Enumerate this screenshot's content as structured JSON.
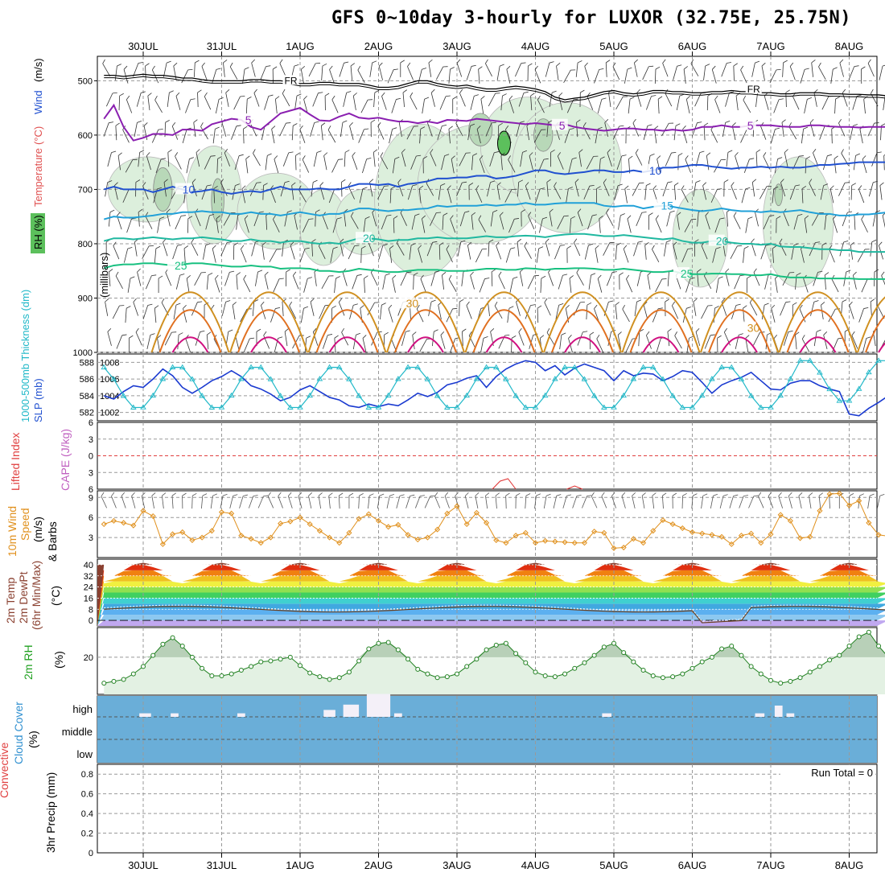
{
  "title": "GFS 0~10day 3-hourly for LUXOR (32.75E, 25.75N)",
  "chart_data": {
    "type": "meteogram",
    "x_dates": [
      "30JUL",
      "31JUL",
      "1AUG",
      "2AUG",
      "3AUG",
      "4AUG",
      "5AUG",
      "6AUG",
      "7AUG",
      "8AUG"
    ],
    "panels": {
      "upper_air": {
        "ylabel_parts": [
          "RH (%)",
          "Temperature",
          "(°C)",
          "Wind",
          "(m/s)"
        ],
        "yunit": "(millibars)",
        "yticks": [
          500,
          600,
          700,
          800,
          900,
          1000
        ],
        "ylim": [
          1000,
          455
        ],
        "freezing_level_label": "FR",
        "isotherms": [
          {
            "temp": 5,
            "color": "#8a1fb0",
            "pressures": [
              570,
              545,
              585,
              610,
              605,
              598,
              598,
              600,
              590,
              590,
              592,
              580,
              575,
              570,
              572,
              585,
              590,
              575,
              560,
              555,
              550,
              562,
              573,
              574,
              566,
              560,
              568,
              570,
              568,
              572,
              575,
              575,
              578,
              575,
              578,
              572,
              573,
              574,
              570,
              572,
              574,
              576,
              578,
              580,
              578,
              580,
              582,
              580,
              585,
              588,
              590,
              592,
              590,
              588,
              588,
              590,
              590,
              592,
              590,
              592,
              590,
              585,
              585,
              582,
              585,
              585,
              582,
              582,
              582,
              584,
              585,
              585,
              582,
              582,
              584,
              585,
              585,
              586,
              585,
              585,
              585
            ]
          },
          {
            "temp": 10,
            "color": "#2050d0",
            "pressures": [
              700,
              695,
              700,
              700,
              700,
              705,
              700,
              695,
              700,
              705,
              703,
              700,
              705,
              708,
              705,
              703,
              705,
              700,
              695,
              700,
              700,
              700,
              698,
              700,
              700,
              695,
              690,
              690,
              692,
              690,
              695,
              690,
              688,
              685,
              680,
              680,
              678,
              678,
              675,
              675,
              680,
              678,
              675,
              670,
              665,
              665,
              670,
              672,
              670,
              668,
              665,
              665,
              668,
              668,
              665,
              668,
              665,
              660,
              660,
              658,
              655,
              655,
              658,
              660,
              662,
              660,
              660,
              658,
              660,
              658,
              660,
              660,
              658,
              655,
              655,
              653,
              652,
              650,
              650,
              650,
              650
            ]
          },
          {
            "temp": 15,
            "color": "#20a0d8",
            "pressures": [
              755,
              750,
              752,
              752,
              750,
              748,
              745,
              745,
              742,
              742,
              740,
              742,
              742,
              745,
              745,
              742,
              745,
              745,
              748,
              745,
              742,
              745,
              748,
              745,
              745,
              740,
              735,
              735,
              738,
              740,
              738,
              738,
              736,
              735,
              730,
              732,
              730,
              730,
              730,
              728,
              730,
              728,
              728,
              725,
              728,
              728,
              726,
              725,
              725,
              725,
              725,
              730,
              732,
              730,
              730,
              735,
              732,
              730,
              732,
              735,
              738,
              740,
              738,
              735,
              738,
              740,
              740,
              742,
              740,
              742,
              740,
              738,
              742,
              745,
              745,
              748,
              748,
              746,
              746,
              744,
              742
            ]
          },
          {
            "temp": 20,
            "color": "#20b8a0",
            "pressures": [
              795,
              790,
              790,
              792,
              790,
              788,
              790,
              792,
              790,
              790,
              788,
              790,
              792,
              795,
              795,
              792,
              795,
              795,
              798,
              795,
              795,
              798,
              800,
              798,
              800,
              795,
              790,
              790,
              792,
              795,
              793,
              793,
              790,
              790,
              788,
              790,
              790,
              790,
              788,
              786,
              788,
              788,
              786,
              785,
              786,
              788,
              785,
              783,
              782,
              782,
              784,
              786,
              786,
              784,
              786,
              788,
              790,
              792,
              790,
              795,
              798,
              798,
              795,
              795,
              798,
              800,
              800,
              802,
              800,
              805,
              806,
              806,
              808,
              810,
              810,
              812,
              812,
              815,
              815,
              815,
              815
            ]
          },
          {
            "temp": 25,
            "color": "#18c080",
            "pressures": [
              845,
              840,
              838,
              838,
              836,
              836,
              838,
              840,
              838,
              836,
              836,
              838,
              840,
              842,
              842,
              840,
              842,
              842,
              846,
              845,
              845,
              846,
              850,
              850,
              852,
              850,
              846,
              848,
              850,
              852,
              852,
              850,
              848,
              848,
              848,
              850,
              850,
              850,
              848,
              846,
              846,
              848,
              848,
              845,
              846,
              848,
              846,
              846,
              845,
              845,
              846,
              848,
              848,
              846,
              848,
              850,
              852,
              852,
              850,
              855,
              856,
              856,
              855,
              855,
              856,
              856,
              858,
              858,
              856,
              860,
              862,
              862,
              862,
              864,
              864,
              864,
              864,
              865,
              865,
              865,
              865
            ]
          }
        ],
        "isotherm_labels": [
          {
            "text": "5",
            "temp": 5,
            "x_day": 1.3
          },
          {
            "text": "5",
            "temp": 5,
            "x_day": 5.3
          },
          {
            "text": "5",
            "temp": 5,
            "x_day": 7.7
          },
          {
            "text": "10",
            "temp": 10,
            "x_day": 0.5
          },
          {
            "text": "10",
            "temp": 10,
            "x_day": 6.45
          },
          {
            "text": "15",
            "temp": 15,
            "x_day": 6.6
          },
          {
            "text": "20",
            "temp": 20,
            "x_day": 2.8
          },
          {
            "text": "20",
            "temp": 20,
            "x_day": 7.3
          },
          {
            "text": "25",
            "temp": 25,
            "x_day": 0.4
          },
          {
            "text": "25",
            "temp": 25,
            "x_day": 6.85
          },
          {
            "text": "30",
            "temp": 30,
            "x_day": 3.35
          },
          {
            "text": "30",
            "temp": 30,
            "x_day": 7.7
          }
        ]
      },
      "slp_thickness": {
        "ylabel_left": "1000-500mb Thickness (dm)",
        "ylabel_right": "SLP (mb)",
        "thickness_ticks": [
          582,
          584,
          586,
          588
        ],
        "slp_ticks": [
          1002,
          1004,
          1006,
          1008
        ],
        "slp": [
          1004.0,
          1003.6,
          1004.5,
          1005.2,
          1005.0,
          1006.0,
          1007.2,
          1006.4,
          1005.0,
          1004.3,
          1005.0,
          1005.8,
          1006.3,
          1007.0,
          1006.3,
          1005.2,
          1004.8,
          1004.2,
          1003.4,
          1003.8,
          1004.7,
          1005.2,
          1004.5,
          1003.8,
          1003.5,
          1002.8,
          1002.6,
          1003.0,
          1002.7,
          1003.0,
          1002.8,
          1003.5,
          1004.3,
          1003.9,
          1004.4,
          1005.3,
          1005.6,
          1006.1,
          1006.4,
          1005.0,
          1006.3,
          1007.2,
          1007.8,
          1008.2,
          1008.0,
          1007.0,
          1007.6,
          1006.5,
          1007.3,
          1007.8,
          1007.4,
          1007.0,
          1005.8,
          1007.0,
          1006.4,
          1006.7,
          1006.6,
          1005.8,
          1006.3,
          1007.0,
          1006.8,
          1005.6,
          1004.3,
          1005.3,
          1005.8,
          1006.2,
          1006.8,
          1005.8,
          1004.8,
          1004.7,
          1005.5,
          1005.8,
          1005.8,
          1005.2,
          1004.8,
          1004.5,
          1001.8,
          1001.6,
          1002.5,
          1003.2,
          1004.0
        ]
      },
      "stability": {
        "ylabel_left": "Lifted Index",
        "ylabel_right": "CAPE (J/kg)",
        "li_ticks": [
          -6,
          -3,
          0,
          3,
          6
        ],
        "li_zero": 0
      },
      "wind10m": {
        "ylabel": "10m Wind Speed (m/s) & Barbs",
        "yticks": [
          3,
          6,
          9
        ],
        "ylim": [
          0,
          10
        ],
        "speed": [
          5.0,
          5.5,
          5.2,
          4.8,
          7.0,
          6.2,
          2.0,
          3.5,
          3.8,
          2.6,
          3.0,
          4.0,
          6.8,
          6.6,
          3.3,
          2.8,
          2.2,
          3.0,
          5.1,
          5.4,
          6.0,
          5.0,
          4.0,
          3.0,
          2.2,
          3.7,
          5.8,
          6.5,
          5.5,
          4.6,
          4.9,
          3.4,
          2.7,
          3.0,
          4.2,
          6.6,
          7.7,
          5.0,
          6.7,
          5.2,
          2.6,
          2.2,
          3.3,
          3.7,
          2.2,
          2.5,
          2.4,
          2.3,
          2.2,
          2.2,
          3.9,
          3.7,
          1.4,
          1.5,
          2.8,
          2.2,
          4.0,
          5.6,
          5.0,
          4.4,
          3.8,
          3.6,
          3.4,
          3.1,
          2.0,
          3.3,
          3.6,
          2.2,
          3.5,
          6.4,
          5.5,
          2.9,
          3.1,
          7.0,
          9.5,
          9.6,
          7.8,
          8.5,
          5.2,
          3.4,
          3.2
        ]
      },
      "temp2m": {
        "ylabel": "2m Temp / 2m DewPt / (6hr Min/Max) (°C)",
        "yticks": [
          0,
          8,
          16,
          24,
          32,
          40
        ],
        "ylim": [
          -4,
          44
        ],
        "t2m_range": [
          26,
          42
        ]
      },
      "rh2m": {
        "ylabel": "2m RH (%)",
        "yticks": [
          20
        ],
        "ylim": [
          0,
          36
        ],
        "rh": [
          6.0,
          7.0,
          8.0,
          11.0,
          15.0,
          21.0,
          27.0,
          30.5,
          26.0,
          20.0,
          14.0,
          10.0,
          10.0,
          11.0,
          13.0,
          15.0,
          17.5,
          18.0,
          19.0,
          20.0,
          15.5,
          11.5,
          9.5,
          8.0,
          9.0,
          12.0,
          18.0,
          24.5,
          27.5,
          28.0,
          24.0,
          19.0,
          13.5,
          11.0,
          9.0,
          9.5,
          11.0,
          15.0,
          19.0,
          24.0,
          26.5,
          27.5,
          22.0,
          17.0,
          12.0,
          10.0,
          9.5,
          11.0,
          14.0,
          17.0,
          21.0,
          25.5,
          27.5,
          22.5,
          17.5,
          13.0,
          10.0,
          9.0,
          9.5,
          11.0,
          14.0,
          17.5,
          20.0,
          24.5,
          26.0,
          21.0,
          15.0,
          11.0,
          7.5,
          6.0,
          7.0,
          9.0,
          12.0,
          15.0,
          18.5,
          21.0,
          26.0,
          31.0,
          33.5,
          26.0,
          20.0
        ]
      },
      "cloud": {
        "ylabel": "Cloud Cover (%)",
        "levels": [
          "high",
          "middle",
          "low"
        ],
        "bars": [
          {
            "day": -0.05,
            "w": 0.15,
            "level": "high",
            "h": 8
          },
          {
            "day": 0.35,
            "w": 0.1,
            "level": "high",
            "h": 8
          },
          {
            "day": 1.2,
            "w": 0.1,
            "level": "high",
            "h": 8
          },
          {
            "day": 2.3,
            "w": 0.15,
            "level": "high",
            "h": 22
          },
          {
            "day": 2.55,
            "w": 0.2,
            "level": "high",
            "h": 44
          },
          {
            "day": 2.85,
            "w": 0.3,
            "level": "high",
            "h": 88
          },
          {
            "day": 3.2,
            "w": 0.1,
            "level": "high",
            "h": 8
          },
          {
            "day": 5.85,
            "w": 0.12,
            "level": "high",
            "h": 8
          },
          {
            "day": 7.8,
            "w": 0.12,
            "level": "high",
            "h": 8
          },
          {
            "day": 8.05,
            "w": 0.1,
            "level": "high",
            "h": 40
          },
          {
            "day": 8.2,
            "w": 0.1,
            "level": "high",
            "h": 8
          }
        ]
      },
      "precip": {
        "ylabel": "Total / Rain / Convective  3hr Precip (mm)",
        "yticks": [
          0,
          0.2,
          0.4,
          0.6,
          0.8
        ],
        "ylim": [
          0,
          0.9
        ],
        "run_total_label": "Run Total = 0"
      }
    }
  }
}
